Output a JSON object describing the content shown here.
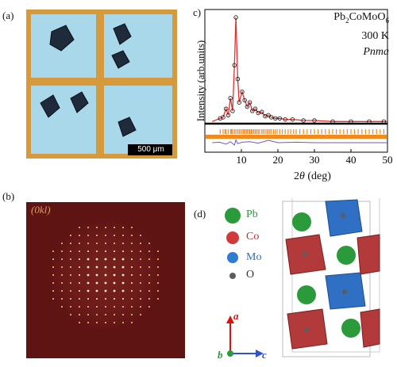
{
  "panels": {
    "a": {
      "label": "(a)",
      "scalebar_text": "500 μm"
    },
    "b": {
      "label": "(b)",
      "plane_label": "(0kl)"
    },
    "c": {
      "label": "c)"
    },
    "d": {
      "label": "(d)"
    }
  },
  "chart_data": {
    "type": "line",
    "title": "",
    "xlabel": "2θ (deg)",
    "ylabel": "Intensity (arb.units)",
    "xlim": [
      0,
      50
    ],
    "xticks": [
      10,
      20,
      30,
      40,
      50
    ],
    "yticks": [],
    "annotations": [
      "Pb2CoMoO6",
      "300 K",
      "Pnma"
    ],
    "series": [
      {
        "style": "observed-circles",
        "x": [
          4.2,
          5.0,
          5.8,
          6.4,
          7.0,
          7.6,
          8.1,
          8.5,
          9.0,
          9.4,
          10.2,
          10.9,
          11.6,
          12.3,
          13.0,
          13.8,
          14.6,
          15.6,
          16.5,
          17.4,
          18.2,
          19.3,
          20.5,
          22.0,
          24.0,
          27.0,
          30.0,
          35.0,
          40.0,
          45.0,
          49.0
        ],
        "values": [
          0.05,
          0.06,
          0.14,
          0.08,
          0.24,
          0.12,
          0.55,
          1.0,
          0.42,
          0.2,
          0.3,
          0.22,
          0.16,
          0.2,
          0.12,
          0.14,
          0.1,
          0.11,
          0.07,
          0.08,
          0.06,
          0.05,
          0.05,
          0.04,
          0.04,
          0.03,
          0.03,
          0.02,
          0.02,
          0.02,
          0.02
        ]
      },
      {
        "style": "calculated-line",
        "x": [
          2.0,
          4.2,
          5.0,
          5.8,
          6.4,
          7.0,
          7.6,
          8.1,
          8.5,
          9.0,
          9.4,
          10.2,
          10.9,
          11.6,
          12.3,
          13.0,
          13.8,
          14.6,
          15.6,
          16.5,
          17.4,
          18.2,
          19.3,
          20.5,
          22.0,
          24.0,
          27.0,
          30.0,
          35.0,
          40.0,
          45.0,
          50.0
        ],
        "values": [
          0.02,
          0.05,
          0.06,
          0.14,
          0.08,
          0.24,
          0.12,
          0.55,
          1.0,
          0.42,
          0.2,
          0.3,
          0.22,
          0.16,
          0.2,
          0.12,
          0.14,
          0.1,
          0.11,
          0.07,
          0.08,
          0.06,
          0.05,
          0.05,
          0.04,
          0.04,
          0.03,
          0.03,
          0.02,
          0.02,
          0.02,
          0.02
        ]
      }
    ],
    "bragg_positions": [
      4.2,
      5.0,
      5.5,
      5.8,
      6.4,
      7.0,
      7.3,
      7.6,
      8.1,
      8.5,
      9.0,
      9.4,
      9.8,
      10.2,
      10.6,
      10.9,
      11.3,
      11.6,
      12.0,
      12.3,
      12.7,
      13.0,
      13.4,
      13.8,
      14.2,
      14.6,
      15.0,
      15.6,
      16.0,
      16.5,
      17.0,
      17.4,
      17.8,
      18.2,
      18.8,
      19.3,
      19.8,
      20.5,
      21.2,
      22.0,
      22.8,
      23.5,
      24.3,
      25.0,
      26.0,
      27.0,
      28.0,
      29.0,
      30.0,
      31.0,
      32.0,
      33.0,
      34.0,
      35.0,
      36.0,
      37.0,
      38.0,
      39.0,
      40.0,
      41.0,
      42.0,
      43.0,
      44.0,
      45.0,
      46.0,
      47.0,
      48.0,
      49.0
    ],
    "difference": {
      "x": [
        2,
        4,
        5.8,
        7.0,
        8.1,
        8.5,
        9.0,
        10.2,
        12.3,
        14.6,
        17.4,
        20,
        25,
        30,
        35,
        40,
        45,
        50
      ],
      "values": [
        0,
        0.01,
        -0.03,
        0.02,
        -0.05,
        0.06,
        -0.02,
        0.01,
        0.02,
        -0.01,
        0.05,
        0.0,
        0.01,
        0.0,
        0.0,
        0.0,
        0.0,
        0.0
      ]
    },
    "colors": {
      "observed": "#111111",
      "calculated": "#e03030",
      "bragg": "#f08a1c",
      "difference": "#6a5acd"
    }
  },
  "legend_d": {
    "items": [
      {
        "label": "Pb",
        "color": "#2a9a3a"
      },
      {
        "label": "Co",
        "color": "#d23a3a"
      },
      {
        "label": "Mo",
        "color": "#2f7cd3"
      },
      {
        "label": "O",
        "color": "#5c5c5c"
      }
    ],
    "axes": {
      "a": "a",
      "b": "b",
      "c": "c"
    }
  }
}
